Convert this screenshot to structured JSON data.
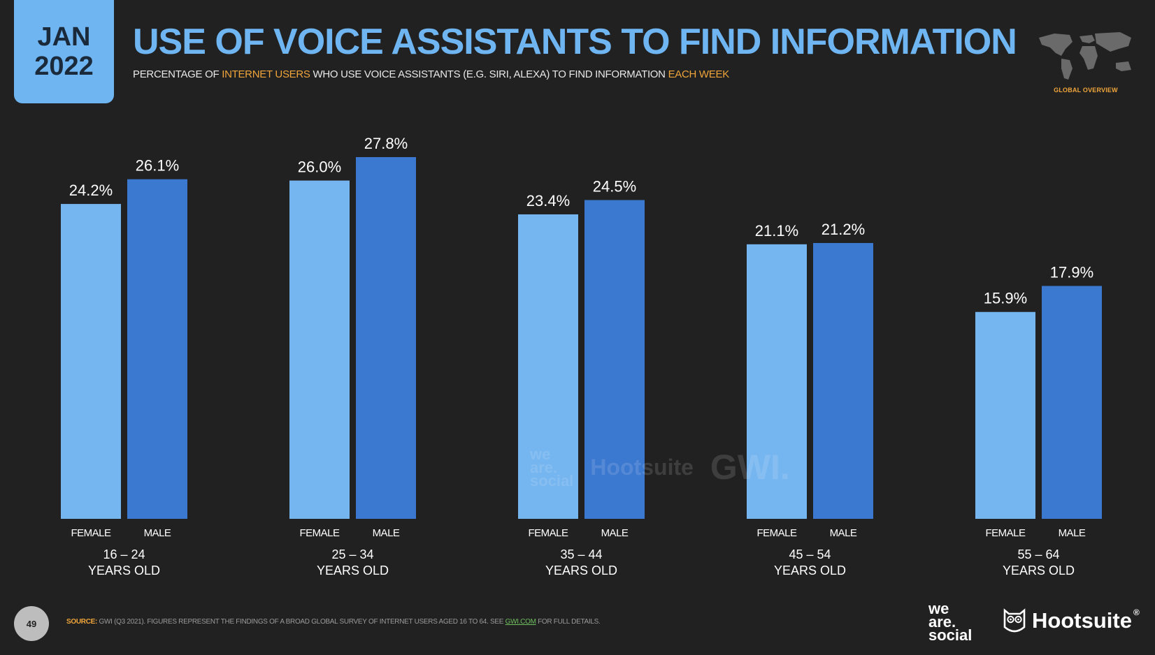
{
  "header": {
    "date_month": "JAN",
    "date_year": "2022",
    "title": "USE OF VOICE ASSISTANTS TO FIND INFORMATION",
    "subtitle_part1": "PERCENTAGE OF ",
    "subtitle_highlight1": "INTERNET USERS",
    "subtitle_part2": " WHO USE VOICE ASSISTANTS (E.G. SIRI, ALEXA) TO FIND INFORMATION ",
    "subtitle_highlight2": "EACH WEEK",
    "map_caption": "GLOBAL OVERVIEW"
  },
  "colors": {
    "female": "#75b5f0",
    "male": "#3b78cf",
    "accent": "#f0a53a",
    "title": "#6eb5f2",
    "background": "#212121"
  },
  "chart_data": {
    "type": "bar",
    "categories": [
      "16 – 24",
      "25 – 34",
      "35 – 44",
      "45 – 54",
      "55 – 64"
    ],
    "category_suffix": "YEARS OLD",
    "series": [
      {
        "name": "FEMALE",
        "values": [
          24.2,
          26.0,
          23.4,
          21.1,
          15.9
        ],
        "labels": [
          "24.2%",
          "26.0%",
          "23.4%",
          "21.1%",
          "15.9%"
        ]
      },
      {
        "name": "MALE",
        "values": [
          26.1,
          27.8,
          24.5,
          21.2,
          17.9
        ],
        "labels": [
          "26.1%",
          "27.8%",
          "24.5%",
          "21.2%",
          "17.9%"
        ]
      }
    ],
    "unit": "%",
    "ylim": [
      0,
      27.8
    ],
    "grid": false,
    "legend": "none"
  },
  "watermark": {
    "we_are_social": [
      "we",
      "are.",
      "social"
    ],
    "hootsuite": "Hootsuite",
    "gwi": "GWI."
  },
  "footer": {
    "page_number": "49",
    "source_label": "SOURCE:",
    "source_text": " GWI (Q3 2021). FIGURES REPRESENT THE FINDINGS OF A BROAD GLOBAL SURVEY OF INTERNET USERS AGED 16 TO 64. SEE ",
    "source_link": "GWI.COM",
    "source_end": " FOR FULL DETAILS.",
    "brand_was": [
      "we",
      "are.",
      "social"
    ],
    "brand_hootsuite": "Hootsuite",
    "brand_hootsuite_mark": "®"
  }
}
